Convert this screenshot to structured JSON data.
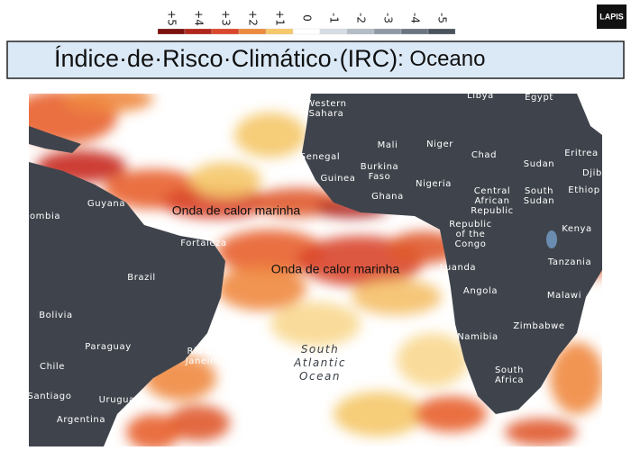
{
  "logo": "LAPIS",
  "legend": {
    "labels": [
      "+5",
      "+4",
      "+3",
      "+2",
      "+1",
      "0",
      "-1",
      "-2",
      "-3",
      "-4",
      "-5"
    ],
    "colors": [
      "#7a1010",
      "#b0261c",
      "#d9472b",
      "#ec8a3e",
      "#f5c86a",
      "#ffffff",
      "#d7dde4",
      "#b4bcc6",
      "#8f99a5",
      "#6b7582",
      "#4a525c"
    ]
  },
  "title": {
    "main": "Índice·de·Risco·Climático·(IRC)",
    "suffix": ": Oceano"
  },
  "map": {
    "labels": [
      {
        "lines": [
          "Libya"
        ]
      },
      {
        "lines": [
          "Egypt"
        ]
      },
      {
        "lines": [
          "Western",
          "Sahara"
        ]
      },
      {
        "lines": [
          "Mali"
        ]
      },
      {
        "lines": [
          "Niger"
        ]
      },
      {
        "lines": [
          "Chad"
        ]
      },
      {
        "lines": [
          "Sudan"
        ]
      },
      {
        "lines": [
          "Eritrea"
        ]
      },
      {
        "lines": [
          "Djib"
        ]
      },
      {
        "lines": [
          "Senegal"
        ]
      },
      {
        "lines": [
          "Burkina",
          "Faso"
        ]
      },
      {
        "lines": [
          "Guinea"
        ]
      },
      {
        "lines": [
          "Ghana"
        ]
      },
      {
        "lines": [
          "Nigeria"
        ]
      },
      {
        "lines": [
          "Central",
          "African",
          "Republic"
        ]
      },
      {
        "lines": [
          "South",
          "Sudan"
        ]
      },
      {
        "lines": [
          "Ethiop"
        ]
      },
      {
        "lines": [
          "Republic",
          "of the",
          "Congo"
        ]
      },
      {
        "lines": [
          "Kenya"
        ]
      },
      {
        "lines": [
          "Tanzania"
        ]
      },
      {
        "lines": [
          "Luanda"
        ]
      },
      {
        "lines": [
          "Angola"
        ]
      },
      {
        "lines": [
          "Malawi"
        ]
      },
      {
        "lines": [
          "Zimbabwe"
        ]
      },
      {
        "lines": [
          "Namibia"
        ]
      },
      {
        "lines": [
          "South",
          "Africa"
        ]
      },
      {
        "lines": [
          "Guyana"
        ]
      },
      {
        "lines": [
          "ombia"
        ]
      },
      {
        "lines": [
          "Brazil"
        ]
      },
      {
        "lines": [
          "Fortaleza"
        ]
      },
      {
        "lines": [
          "Bolivia"
        ]
      },
      {
        "lines": [
          "Paraguay"
        ]
      },
      {
        "lines": [
          "Chile"
        ]
      },
      {
        "lines": [
          "Rio de",
          "Janeiro"
        ]
      },
      {
        "lines": [
          "Santiago"
        ]
      },
      {
        "lines": [
          "Uruguay"
        ]
      },
      {
        "lines": [
          "Argentina"
        ]
      },
      {
        "lines": [
          "South",
          "Atlantic",
          "Ocean"
        ]
      }
    ],
    "annotations": [
      "Onda de calor marinha",
      "Onda de calor marinha"
    ]
  }
}
